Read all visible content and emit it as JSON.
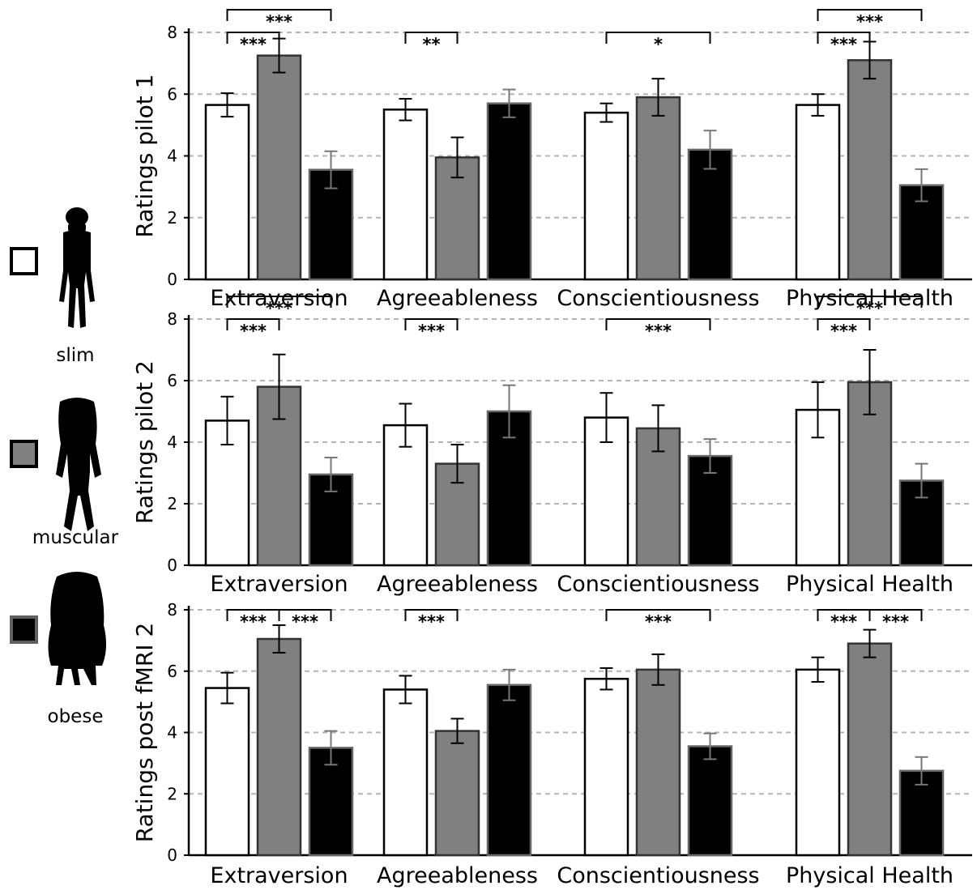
{
  "legend": [
    {
      "label": "slim",
      "fill": "#ffffff",
      "icon": "slim-body-silhouette-icon"
    },
    {
      "label": "muscular",
      "fill": "#808080",
      "icon": "muscular-body-silhouette-icon"
    },
    {
      "label": "obese",
      "fill": "#000000",
      "icon": "obese-body-silhouette-icon"
    }
  ],
  "colors": {
    "slim": "#ffffff",
    "muscular": "#808080",
    "obese": "#000000",
    "grid": "#b4b4b4"
  },
  "chart_data": [
    {
      "type": "bar",
      "ylabel": "Ratings pilot 1",
      "ylim": [
        0,
        8
      ],
      "yticks": [
        "0",
        "2",
        "4",
        "6",
        "8"
      ],
      "grid": true,
      "categories": [
        "Extraversion",
        "Agreeableness",
        "Conscientiousness",
        "Physical Health"
      ],
      "series": [
        {
          "name": "slim",
          "values": [
            5.65,
            5.5,
            5.4,
            5.65
          ],
          "error": [
            0.38,
            0.35,
            0.3,
            0.35
          ]
        },
        {
          "name": "muscular",
          "values": [
            7.25,
            3.95,
            5.9,
            7.1
          ],
          "error": [
            0.55,
            0.65,
            0.6,
            0.6
          ]
        },
        {
          "name": "obese",
          "values": [
            3.55,
            5.7,
            4.2,
            3.05
          ],
          "error": [
            0.6,
            0.45,
            0.62,
            0.52
          ]
        }
      ],
      "significance": [
        {
          "category": 0,
          "from": 0,
          "to": 2,
          "label": "***",
          "level": 1
        },
        {
          "category": 0,
          "from": 0,
          "to": 1,
          "label": "***",
          "level": 0
        },
        {
          "category": 1,
          "from": 0,
          "to": 1,
          "label": "**",
          "level": 0
        },
        {
          "category": 2,
          "from": 0,
          "to": 2,
          "label": "*",
          "level": 0
        },
        {
          "category": 3,
          "from": 0,
          "to": 2,
          "label": "***",
          "level": 1
        },
        {
          "category": 3,
          "from": 0,
          "to": 1,
          "label": "***",
          "level": 0
        }
      ]
    },
    {
      "type": "bar",
      "ylabel": "Ratings pilot 2",
      "ylim": [
        0,
        8
      ],
      "yticks": [
        "0",
        "2",
        "4",
        "6",
        "8"
      ],
      "grid": true,
      "categories": [
        "Extraversion",
        "Agreeableness",
        "Conscientiousness",
        "Physical Health"
      ],
      "series": [
        {
          "name": "slim",
          "values": [
            4.7,
            4.55,
            4.8,
            5.05
          ],
          "error": [
            0.78,
            0.7,
            0.8,
            0.9
          ]
        },
        {
          "name": "muscular",
          "values": [
            5.8,
            3.3,
            4.45,
            5.95
          ],
          "error": [
            1.05,
            0.62,
            0.75,
            1.05
          ]
        },
        {
          "name": "obese",
          "values": [
            2.95,
            5.0,
            3.55,
            2.75
          ],
          "error": [
            0.55,
            0.85,
            0.55,
            0.55
          ]
        }
      ],
      "significance": [
        {
          "category": 0,
          "from": 0,
          "to": 2,
          "label": "***",
          "level": 1
        },
        {
          "category": 0,
          "from": 0,
          "to": 1,
          "label": "***",
          "level": 0
        },
        {
          "category": 1,
          "from": 0,
          "to": 1,
          "label": "***",
          "level": 0
        },
        {
          "category": 2,
          "from": 0,
          "to": 2,
          "label": "***",
          "level": 0
        },
        {
          "category": 3,
          "from": 0,
          "to": 2,
          "label": "***",
          "level": 1
        },
        {
          "category": 3,
          "from": 0,
          "to": 1,
          "label": "***",
          "level": 0
        }
      ]
    },
    {
      "type": "bar",
      "ylabel": "Ratings post fMRI 2",
      "ylim": [
        0,
        8
      ],
      "yticks": [
        "0",
        "2",
        "4",
        "6",
        "8"
      ],
      "grid": true,
      "categories": [
        "Extraversion",
        "Agreeableness",
        "Conscientiousness",
        "Physical Health"
      ],
      "series": [
        {
          "name": "slim",
          "values": [
            5.45,
            5.4,
            5.75,
            6.05
          ],
          "error": [
            0.5,
            0.45,
            0.35,
            0.4
          ]
        },
        {
          "name": "muscular",
          "values": [
            7.05,
            4.05,
            6.05,
            6.9
          ],
          "error": [
            0.45,
            0.4,
            0.5,
            0.45
          ]
        },
        {
          "name": "obese",
          "values": [
            3.5,
            5.55,
            3.55,
            2.75
          ],
          "error": [
            0.55,
            0.5,
            0.42,
            0.45
          ]
        }
      ],
      "significance": [
        {
          "category": 0,
          "from": 0,
          "to": 1,
          "label": "***",
          "level": 0
        },
        {
          "category": 0,
          "from": 1,
          "to": 2,
          "label": "***",
          "level": 0
        },
        {
          "category": 1,
          "from": 0,
          "to": 1,
          "label": "***",
          "level": 0
        },
        {
          "category": 2,
          "from": 0,
          "to": 2,
          "label": "***",
          "level": 0
        },
        {
          "category": 3,
          "from": 0,
          "to": 1,
          "label": "***",
          "level": 0
        },
        {
          "category": 3,
          "from": 1,
          "to": 2,
          "label": "***",
          "level": 0
        }
      ]
    }
  ]
}
